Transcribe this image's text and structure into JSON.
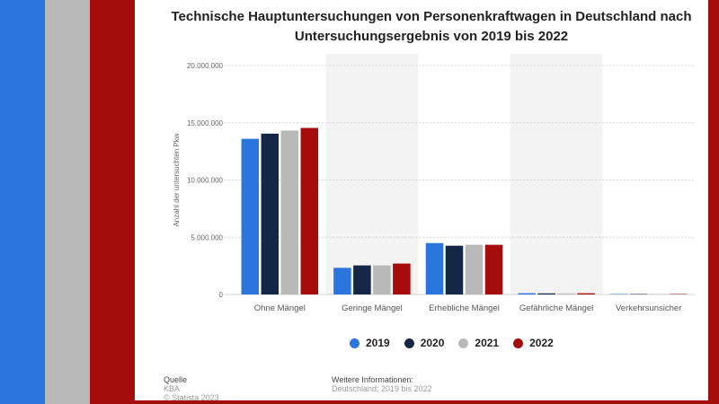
{
  "stripes": {
    "blue": "#2a76dd",
    "gray": "#b9b9b9",
    "red": "#a50c0c"
  },
  "chart_data": {
    "type": "bar",
    "title": "Technische Hauptuntersuchungen von Personenkraftwagen in Deutschland nach Untersuchungsergebnis von 2019 bis 2022",
    "ylabel": "Anzahl der untersuchten Pkw",
    "xlabel": "",
    "ylim": [
      0,
      20000000
    ],
    "yticks": [
      0,
      5000000,
      10000000,
      15000000,
      20000000
    ],
    "ytick_labels": [
      "0",
      "5.000.000",
      "10.000.000",
      "15.000.000",
      "20.000.000"
    ],
    "categories": [
      "Ohne Mängel",
      "Geringe Mängel",
      "Erhebliche Mängel",
      "Gefährliche Mängel",
      "Verkehrsunsicher"
    ],
    "series": [
      {
        "name": "2019",
        "color": "#2a76dd",
        "values": [
          13600000,
          2330000,
          4490000,
          110000,
          2000
        ]
      },
      {
        "name": "2020",
        "color": "#142846",
        "values": [
          14050000,
          2540000,
          4260000,
          95000,
          2000
        ]
      },
      {
        "name": "2021",
        "color": "#b9b9b9",
        "values": [
          14320000,
          2540000,
          4340000,
          90000,
          2000
        ]
      },
      {
        "name": "2022",
        "color": "#a50c0c",
        "values": [
          14550000,
          2700000,
          4340000,
          105000,
          2000
        ]
      }
    ],
    "grid": true,
    "legend_position": "bottom"
  },
  "footer": {
    "source_heading": "Quelle",
    "source_name": "KBA",
    "copyright": "© Statista 2023",
    "info_heading": "Weitere Informationen:",
    "info_text": "Deutschland; 2019 bis 2022"
  }
}
